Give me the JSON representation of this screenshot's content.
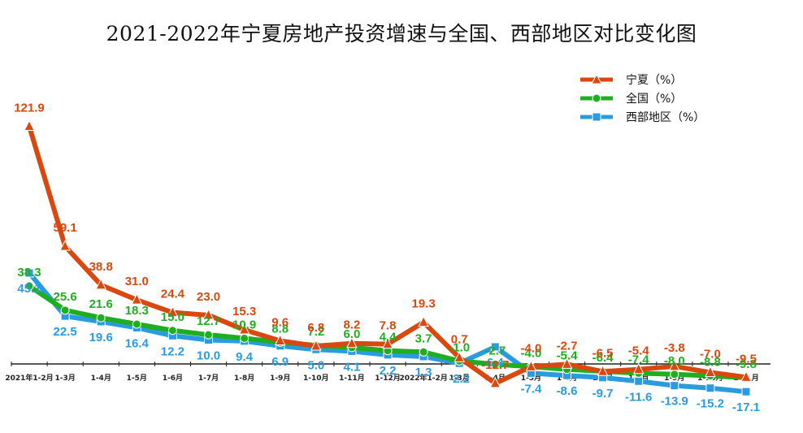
{
  "title": "2021-2022年宁夏房地产投资增速与全国、西部地区对比变化图",
  "chart_data": {
    "type": "line",
    "categories": [
      "2021年1-2月",
      "1-3月",
      "1-4月",
      "1-5月",
      "1-6月",
      "1-7月",
      "1-8月",
      "1-9月",
      "1-10月",
      "1-11月",
      "1-12月",
      "2022年1-2月",
      "1-3月",
      "1-4月",
      "1-5月",
      "1-6月",
      "1-7月",
      "1-8月",
      "1-9月",
      "1-10月",
      "1-11月"
    ],
    "series": [
      {
        "name": "宁夏（%）",
        "color": "#d9480f",
        "marker": "triangle",
        "values": [
          121.9,
          59.1,
          38.8,
          31.0,
          24.4,
          23.0,
          15.3,
          9.6,
          6.8,
          8.2,
          7.8,
          19.3,
          0.7,
          -12.7,
          -4.0,
          -2.7,
          -6.5,
          -5.4,
          -3.8,
          -7.0,
          -9.5
        ],
        "labels": [
          "121.9",
          "59.1",
          "38.8",
          "31.0",
          "24.4",
          "23.0",
          "15.3",
          "9.6",
          "6.8",
          "8.2",
          "7.8",
          "19.3",
          "0.7",
          "-12.7",
          "-4.0",
          "-2.7",
          "-6.5",
          "-5.4",
          "-3.8",
          "-7.0",
          "-9.5"
        ]
      },
      {
        "name": "全国（%）",
        "color": "#1fae1f",
        "marker": "circle",
        "values": [
          38.3,
          25.6,
          21.6,
          18.3,
          15.0,
          12.7,
          10.9,
          8.8,
          7.2,
          6.0,
          4.4,
          3.7,
          -1.0,
          -2.7,
          -4.0,
          -5.4,
          -6.4,
          -7.4,
          -8.0,
          -8.8,
          -9.8
        ],
        "labels": [
          "38.3",
          "25.6",
          "21.6",
          "18.3",
          "15.0",
          "12.7",
          "10.9",
          "8.8",
          "7.2",
          "6.0",
          "4.4",
          "3.7",
          "-1.0",
          "-2.7",
          "-4.0",
          "-5.4",
          "-6.4",
          "-7.4",
          "-8.0",
          "-8.8",
          "-9.8"
        ]
      },
      {
        "name": "西部地区（%）",
        "color": "#2b9be0",
        "marker": "square",
        "values": [
          45.1,
          22.5,
          19.6,
          16.4,
          12.2,
          10.0,
          9.4,
          6.9,
          5.0,
          4.1,
          2.2,
          1.3,
          -2.2,
          6.4,
          -7.4,
          -8.6,
          -9.7,
          -11.6,
          -13.9,
          -15.2,
          -17.1
        ],
        "labels": [
          "45.1",
          "22.5",
          "19.6",
          "16.4",
          "12.2",
          "10.0",
          "9.4",
          "6.9",
          "5.0",
          "4.1",
          "2.2",
          "1.3",
          "-2.2",
          "6.4",
          "-7.4",
          "-8.6",
          "-9.7",
          "-11.6",
          "-13.9",
          "-15.2",
          "-17.1"
        ]
      }
    ],
    "xlabel": "",
    "ylabel": "",
    "grid": false,
    "legend_position": "top-right"
  }
}
